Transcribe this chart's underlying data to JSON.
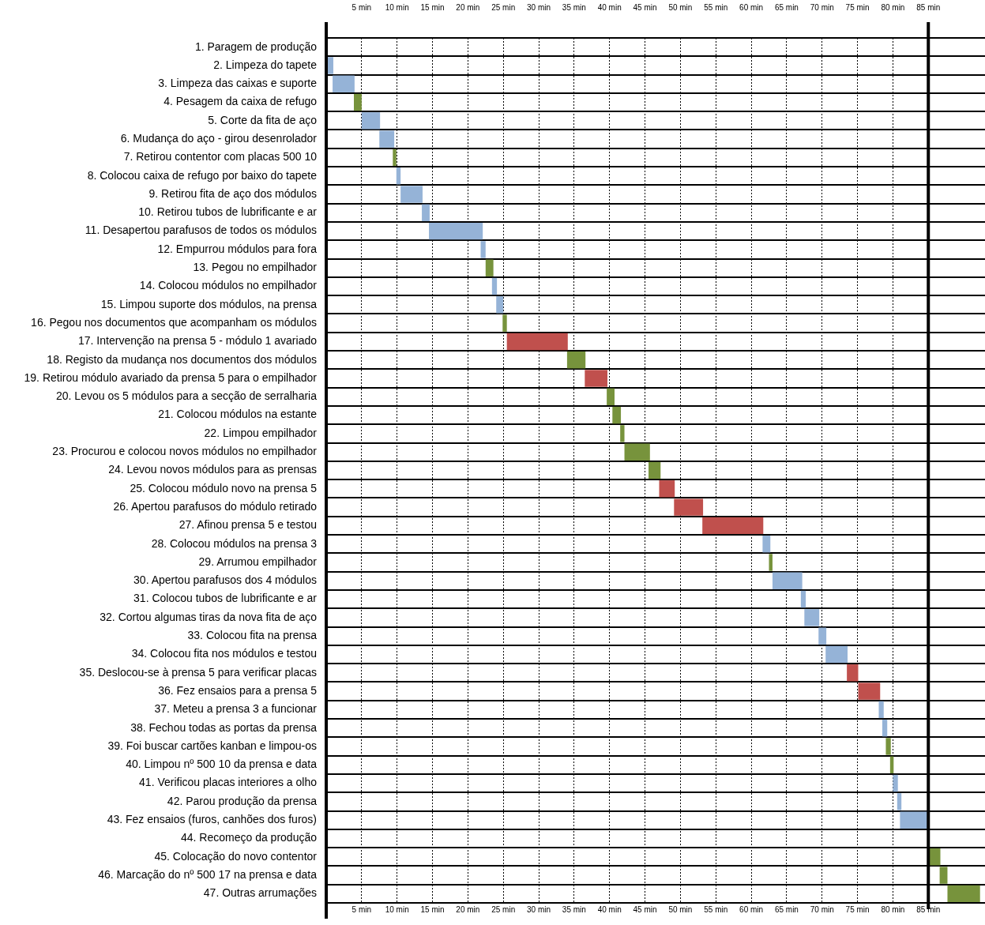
{
  "chart_data": {
    "type": "bar",
    "orientation": "horizontal",
    "categories": [
      "1. Paragem de produção",
      "2. Limpeza do tapete",
      "3. Limpeza das caixas e suporte",
      "4. Pesagem da caixa de refugo",
      "5. Corte da fita de aço",
      "6. Mudança do aço - girou desenrolador",
      "7. Retirou contentor com placas 500 10",
      "8. Colocou caixa de refugo por baixo do tapete",
      "9. Retirou fita de aço dos módulos",
      "10. Retirou tubos de lubrificante e ar",
      "11. Desapertou parafusos de todos os módulos",
      "12. Empurrou módulos para fora",
      "13. Pegou no empilhador",
      "14. Colocou módulos no empilhador",
      "15. Limpou suporte dos módulos, na prensa",
      "16. Pegou nos documentos que acompanham os módulos",
      "17. Intervenção na prensa 5 - módulo 1 avariado",
      "18. Registo da mudança nos documentos dos módulos",
      "19. Retirou módulo avariado da prensa 5 para o empilhador",
      "20. Levou os 5 módulos para a secção de serralharia",
      "21. Colocou módulos na estante",
      "22. Limpou empilhador",
      "23. Procurou e colocou novos módulos no empilhador",
      "24. Levou novos módulos para as prensas",
      "25. Colocou módulo novo na prensa 5",
      "26. Apertou parafusos do módulo retirado",
      "27. Afinou prensa 5 e testou",
      "28. Colocou módulos na prensa 3",
      "29. Arrumou empilhador",
      "30. Apertou parafusos dos 4 módulos",
      "31. Colocou tubos de lubrificante e ar",
      "32. Cortou algumas tiras da nova fita de aço",
      "33. Colocou fita na prensa",
      "34. Colocou fita nos módulos e testou",
      "35. Deslocou-se à prensa 5 para verificar placas",
      "36. Fez ensaios para a prensa 5",
      "37. Meteu a prensa 3 a funcionar",
      "38. Fechou todas as portas da prensa",
      "39. Foi buscar cartões kanban e limpou-os",
      "40. Limpou nº 500 10 da prensa e data",
      "41. Verificou placas interiores a olho",
      "42. Parou produção da prensa",
      "43. Fez ensaios (furos, canhões dos furos)",
      "44. Recomeço da produção",
      "45. Colocação do novo contentor",
      "46. Marcação do nº 500 17 na prensa e data",
      "47. Outras arrumações"
    ],
    "base": [
      null,
      0,
      0.9,
      3.9,
      5,
      7.5,
      9.4,
      9.9,
      10.5,
      13.5,
      14.5,
      21.8,
      22.5,
      23.4,
      24,
      24.9,
      25.5,
      34,
      36.5,
      39.6,
      40.4,
      41.5,
      42.1,
      45.5,
      47,
      49.1,
      53.1,
      61.6,
      62.5,
      63,
      67,
      67.5,
      69.5,
      70.5,
      73.5,
      75.1,
      78,
      78.5,
      79,
      79.6,
      80,
      80.6,
      81,
      null,
      85.1,
      86.6,
      87.7
    ],
    "values": [
      null,
      1,
      3.1,
      1.1,
      2.6,
      2.1,
      0.5,
      0.6,
      3.1,
      1.1,
      7.6,
      0.7,
      1.1,
      0.7,
      1,
      0.6,
      8.6,
      2.6,
      3.2,
      1.1,
      1.2,
      0.6,
      3.6,
      1.7,
      2.2,
      4.1,
      8.6,
      1.1,
      0.5,
      4.2,
      0.7,
      2.1,
      1.1,
      3.1,
      1.6,
      3.1,
      0.7,
      0.7,
      0.7,
      0.5,
      0.7,
      0.6,
      3.9,
      null,
      1.6,
      1.1,
      4.6
    ],
    "colors": [
      "#95b3d7",
      "#95b3d7",
      "#95b3d7",
      "#77933c",
      "#95b3d7",
      "#95b3d7",
      "#77933c",
      "#95b3d7",
      "#95b3d7",
      "#95b3d7",
      "#95b3d7",
      "#95b3d7",
      "#77933c",
      "#95b3d7",
      "#95b3d7",
      "#77933c",
      "#c0504d",
      "#77933c",
      "#c0504d",
      "#77933c",
      "#77933c",
      "#77933c",
      "#77933c",
      "#77933c",
      "#c0504d",
      "#c0504d",
      "#c0504d",
      "#95b3d7",
      "#77933c",
      "#95b3d7",
      "#95b3d7",
      "#95b3d7",
      "#95b3d7",
      "#95b3d7",
      "#c0504d",
      "#c0504d",
      "#95b3d7",
      "#95b3d7",
      "#77933c",
      "#77933c",
      "#95b3d7",
      "#95b3d7",
      "#95b3d7",
      "#77933c",
      "#77933c",
      "#77933c",
      "#77933c"
    ],
    "xlim": [
      0,
      93
    ],
    "xticks": [
      {
        "value": 0,
        "label": null
      },
      {
        "value": 5,
        "label": "5 min"
      },
      {
        "value": 10,
        "label": "10 min"
      },
      {
        "value": 15,
        "label": "15 min"
      },
      {
        "value": 20,
        "label": "20 min"
      },
      {
        "value": 25,
        "label": "25 min"
      },
      {
        "value": 30,
        "label": "30 min"
      },
      {
        "value": 35,
        "label": "35 min"
      },
      {
        "value": 40,
        "label": "40 min"
      },
      {
        "value": 45,
        "label": "45 min"
      },
      {
        "value": 50,
        "label": "50 min"
      },
      {
        "value": 55,
        "label": "55 min"
      },
      {
        "value": 60,
        "label": "60 min"
      },
      {
        "value": 65,
        "label": "65 min"
      },
      {
        "value": 70,
        "label": "70 min"
      },
      {
        "value": 75,
        "label": "75 min"
      },
      {
        "value": 80,
        "label": "80 min"
      },
      {
        "value": 85,
        "label": "85 min"
      }
    ],
    "x2lim": [
      0,
      93
    ],
    "x2ticks": [
      {
        "value": 0,
        "label": null
      },
      {
        "value": 5,
        "label": "5 min"
      },
      {
        "value": 10,
        "label": "10 min"
      },
      {
        "value": 15,
        "label": "15 min"
      },
      {
        "value": 20,
        "label": "20 min"
      },
      {
        "value": 25,
        "label": "25 min"
      },
      {
        "value": 30,
        "label": "30 min"
      },
      {
        "value": 35,
        "label": "35 min"
      },
      {
        "value": 40,
        "label": "40 min"
      },
      {
        "value": 45,
        "label": "45 min"
      },
      {
        "value": 50,
        "label": "50 min"
      },
      {
        "value": 55,
        "label": "55 min"
      },
      {
        "value": 60,
        "label": "60 min"
      },
      {
        "value": 65,
        "label": "65 min"
      },
      {
        "value": 70,
        "label": "70 min"
      },
      {
        "value": 75,
        "label": "75 min"
      },
      {
        "value": 80,
        "label": "80 min"
      },
      {
        "value": 85,
        "label": "85 min"
      }
    ],
    "ref_lines": [
      {
        "axis": "x",
        "value": 85,
        "label": null,
        "color": "#000000"
      }
    ],
    "grid": true
  }
}
